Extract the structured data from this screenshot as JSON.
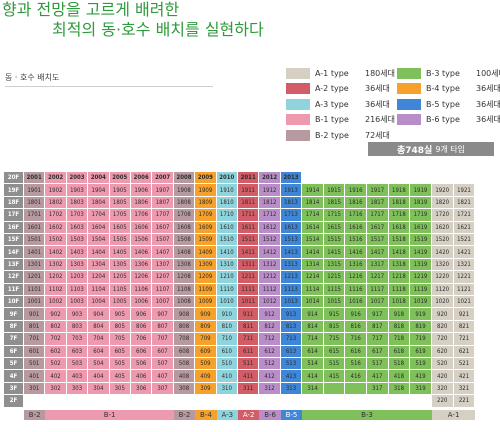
{
  "headline": {
    "line1": "향과 전망을 고르게 배려한",
    "line2": "최적의 동·호수 배치를 실현하다"
  },
  "section": {
    "title": "동 · 호수 배치도"
  },
  "legend": {
    "items": [
      {
        "name": "A-1 type",
        "count": "180세대",
        "color": "#d6cfc4"
      },
      {
        "name": "A-2 type",
        "count": "36세대",
        "color": "#d25d66"
      },
      {
        "name": "A-3 type",
        "count": "36세대",
        "color": "#8fd4dc"
      },
      {
        "name": "B-1 type",
        "count": "216세대",
        "color": "#ee9aae"
      },
      {
        "name": "B-2 type",
        "count": "72세대",
        "color": "#b79aa0"
      },
      {
        "name": "B-3 type",
        "count": "100세대",
        "color": "#7fc05a"
      },
      {
        "name": "B-4 type",
        "count": "36세대",
        "color": "#f6a12b"
      },
      {
        "name": "B-5 type",
        "count": "36세대",
        "color": "#3f86d6"
      },
      {
        "name": "B-6 type",
        "count": "36세대",
        "color": "#b98ec8"
      }
    ],
    "total_label": "총748실",
    "total_note": "9개 타입"
  },
  "colors": {
    "A1": "#d6cfc4",
    "A2": "#d25d66",
    "A3": "#8fd4dc",
    "B1": "#ee9aae",
    "B2": "#b79aa0",
    "B3": "#7fc05a",
    "B4": "#f6a12b",
    "B5": "#3f86d6",
    "B6": "#b98ec8"
  },
  "grid": {
    "corner": "20F",
    "header": [
      "2001",
      "2002",
      "2003",
      "2004",
      "2005",
      "2006",
      "2007",
      "2008",
      "2009",
      "2010",
      "2011",
      "2012",
      "2013"
    ],
    "header_types": [
      "B2",
      "B1",
      "B1",
      "B1",
      "B1",
      "B1",
      "B1",
      "B2",
      "B4",
      "A3",
      "A2",
      "B6",
      "B5"
    ],
    "floors": [
      "19F",
      "18F",
      "17F",
      "16F",
      "15F",
      "14F",
      "13F",
      "12F",
      "11F",
      "10F",
      "9F",
      "8F",
      "7F",
      "6F",
      "5F",
      "4F",
      "3F",
      "2F"
    ],
    "units": [
      "01",
      "02",
      "03",
      "04",
      "05",
      "06",
      "07",
      "08",
      "09",
      "10",
      "11",
      "12",
      "13",
      "14",
      "15",
      "16",
      "17",
      "18",
      "19",
      "20",
      "21"
    ],
    "unit_types": [
      "B2",
      "B1",
      "B1",
      "B1",
      "B1",
      "B1",
      "B1",
      "B2",
      "B4",
      "A3",
      "A2",
      "B6",
      "B5",
      "B3",
      "B3",
      "B3",
      "B3",
      "B3",
      "B3",
      "A1",
      "A1"
    ],
    "row_3F_missing": [
      "15",
      "16"
    ],
    "row_2F_shown": [
      "20",
      "21"
    ],
    "bottom_labels": [
      {
        "text": "B-2",
        "type": "B2",
        "from": 0,
        "to": 0
      },
      {
        "text": "B-1",
        "type": "B1",
        "from": 1,
        "to": 6
      },
      {
        "text": "B-2",
        "type": "B2",
        "from": 7,
        "to": 7
      },
      {
        "text": "B-4",
        "type": "B4",
        "from": 8,
        "to": 8
      },
      {
        "text": "A-3",
        "type": "A3",
        "from": 9,
        "to": 9
      },
      {
        "text": "A-2",
        "type": "A2",
        "from": 10,
        "to": 10
      },
      {
        "text": "B-6",
        "type": "B6",
        "from": 11,
        "to": 11
      },
      {
        "text": "B-5",
        "type": "B5",
        "from": 12,
        "to": 12
      },
      {
        "text": "B-3",
        "type": "B3",
        "from": 13,
        "to": 18
      },
      {
        "text": "A-1",
        "type": "A1",
        "from": 19,
        "to": 20
      }
    ]
  }
}
